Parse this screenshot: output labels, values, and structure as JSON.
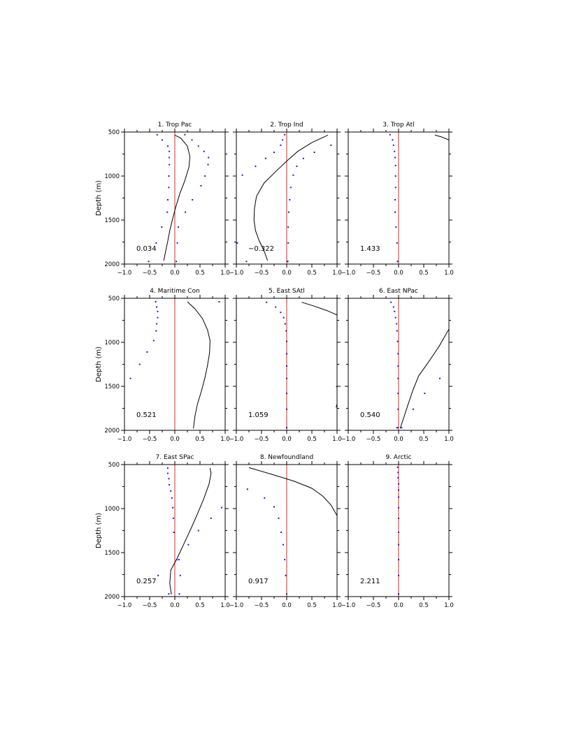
{
  "figure": {
    "ylabel": "Depth (m)",
    "xlim": [
      -1.0,
      1.0
    ],
    "ylim": [
      500,
      2000
    ],
    "x_ticks": [
      "−1.0",
      "−0.5",
      "0.0",
      "0.5",
      "1.0"
    ],
    "y_ticks": [
      "500",
      "1000",
      "1500",
      "2000"
    ],
    "colors": {
      "zero_line": "#e8251f",
      "dots": "#1a1adc",
      "curve": "#000000"
    }
  },
  "chart_data": [
    {
      "type": "line",
      "title": "1. Trop Pac",
      "value_label": "0.034",
      "line": {
        "x": [
          0.0,
          0.12,
          0.25,
          0.3,
          0.28,
          0.2,
          0.1,
          0.02,
          -0.05,
          -0.1,
          -0.14,
          -0.18,
          -0.22
        ],
        "y": [
          535,
          570,
          660,
          780,
          900,
          1050,
          1200,
          1350,
          1500,
          1620,
          1740,
          1850,
          1960
        ]
      },
      "dots": {
        "x": [
          -0.35,
          -0.25,
          -0.14,
          -0.11,
          -0.11,
          -0.11,
          -0.12,
          -0.12,
          -0.14,
          -0.15,
          -0.26,
          -0.37,
          -0.52,
          0.2,
          0.34,
          0.47,
          0.58,
          0.67,
          0.66,
          0.6,
          0.52,
          0.35,
          0.21,
          0.07,
          0.05,
          0.03
        ],
        "y": [
          530,
          590,
          660,
          720,
          790,
          870,
          1000,
          1130,
          1270,
          1410,
          1580,
          1760,
          1970,
          530,
          590,
          660,
          720,
          790,
          870,
          1000,
          1110,
          1270,
          1410,
          1580,
          1760,
          1970
        ]
      }
    },
    {
      "type": "line",
      "title": "2. Trop Ind",
      "value_label": "−0.322",
      "line": {
        "x": [
          0.82,
          0.5,
          0.22,
          0.0,
          -0.22,
          -0.45,
          -0.6,
          -0.64,
          -0.65,
          -0.62,
          -0.55,
          -0.45,
          -0.38
        ],
        "y": [
          535,
          620,
          720,
          830,
          950,
          1080,
          1230,
          1370,
          1500,
          1620,
          1730,
          1850,
          1960
        ]
      },
      "dots": {
        "x": [
          -0.04,
          -0.08,
          -0.12,
          -0.25,
          -0.42,
          -0.62,
          -0.88,
          -0.98,
          -0.8,
          0.88,
          0.55,
          0.33,
          0.2,
          0.13,
          0.08,
          0.06,
          0.04,
          0.03,
          0.03,
          0.02,
          0.02,
          0.02
        ],
        "y": [
          530,
          590,
          650,
          730,
          800,
          890,
          990,
          1760,
          1970,
          650,
          730,
          800,
          890,
          990,
          1130,
          1270,
          1410,
          1580,
          1760,
          1970,
          1970,
          1970
        ]
      }
    },
    {
      "type": "line",
      "title": "3. Trop Atl",
      "value_label": "1.433",
      "line": {
        "x": [
          0.72,
          0.85,
          1.0
        ],
        "y": [
          535,
          555,
          590
        ]
      },
      "dots": {
        "x": [
          -0.17,
          -0.12,
          -0.1,
          -0.08,
          -0.07,
          -0.06,
          -0.06,
          -0.06,
          -0.07,
          -0.07,
          -0.05,
          -0.03,
          -0.02,
          -0.02
        ],
        "y": [
          530,
          590,
          650,
          720,
          790,
          880,
          1000,
          1130,
          1270,
          1410,
          1580,
          1760,
          1970,
          1970
        ]
      }
    },
    {
      "type": "line",
      "title": "4. Maritime Con",
      "value_label": "0.521",
      "line": {
        "x": [
          0.25,
          0.4,
          0.55,
          0.65,
          0.7,
          0.69,
          0.65,
          0.6,
          0.53,
          0.45,
          0.4,
          0.37
        ],
        "y": [
          540,
          620,
          730,
          860,
          980,
          1120,
          1260,
          1400,
          1550,
          1700,
          1840,
          1980
        ]
      },
      "dots": {
        "x": [
          0.88,
          -0.38,
          -0.36,
          -0.34,
          -0.34,
          -0.36,
          -0.37,
          -0.42,
          -0.55,
          -0.7,
          -0.88
        ],
        "y": [
          540,
          540,
          600,
          650,
          720,
          790,
          870,
          980,
          1110,
          1250,
          1410
        ]
      }
    },
    {
      "type": "line",
      "title": "5. East SAtl",
      "value_label": "1.059",
      "line": {
        "x": [
          0.3,
          0.55,
          0.8,
          1.0
        ],
        "y": [
          545,
          590,
          640,
          690
        ]
      },
      "line2": {
        "x": [
          0.98,
          1.0,
          1.0,
          0.98
        ],
        "y": [
          1500,
          1510,
          1700,
          1740
        ]
      },
      "dots": {
        "x": [
          -0.4,
          -0.22,
          -0.12,
          -0.06,
          -0.03,
          -0.01,
          0.0,
          0.0,
          0.0,
          0.0,
          0.0,
          0.0,
          0.0,
          0.0
        ],
        "y": [
          545,
          600,
          660,
          720,
          790,
          870,
          990,
          1130,
          1270,
          1410,
          1580,
          1760,
          1970,
          1970
        ]
      }
    },
    {
      "type": "line",
      "title": "6. East NPac",
      "value_label": "0.540",
      "line": {
        "x": [
          1.0,
          0.8,
          0.6,
          0.4,
          0.28,
          0.18,
          0.1,
          0.03
        ],
        "y": [
          850,
          1050,
          1220,
          1380,
          1550,
          1720,
          1860,
          1980
        ]
      },
      "dots": {
        "x": [
          -0.15,
          -0.1,
          -0.08,
          -0.06,
          -0.04,
          -0.03,
          -0.02,
          -0.01,
          -0.01,
          -0.01,
          -0.01,
          -0.01,
          -0.02,
          -0.03,
          0.82,
          0.52,
          0.29,
          0.06
        ],
        "y": [
          545,
          600,
          650,
          720,
          790,
          870,
          990,
          1130,
          1270,
          1410,
          1580,
          1760,
          1970,
          1970,
          1410,
          1580,
          1760,
          1970
        ]
      }
    },
    {
      "type": "line",
      "title": "7. East SPac",
      "value_label": "0.257",
      "line": {
        "x": [
          0.7,
          0.72,
          0.68,
          0.58,
          0.45,
          0.32,
          0.18,
          0.05,
          -0.08,
          -0.1,
          -0.07
        ],
        "y": [
          540,
          600,
          720,
          880,
          1060,
          1230,
          1400,
          1560,
          1700,
          1850,
          1975
        ]
      },
      "dots": {
        "x": [
          -0.14,
          -0.14,
          -0.12,
          -0.11,
          -0.08,
          -0.06,
          -0.04,
          -0.03,
          -0.02,
          0.93,
          0.72,
          0.47,
          0.27,
          0.08,
          0.04,
          0.11,
          -0.33,
          -0.12,
          0.09
        ],
        "y": [
          540,
          600,
          660,
          730,
          800,
          880,
          990,
          1110,
          1270,
          990,
          1110,
          1250,
          1410,
          1580,
          1580,
          1760,
          1760,
          1970,
          1970
        ]
      }
    },
    {
      "type": "line",
      "title": "8. Newfoundland",
      "value_label": "0.917",
      "line": {
        "x": [
          -0.75,
          -0.3,
          0.15,
          0.5,
          0.72,
          0.88,
          1.0
        ],
        "y": [
          535,
          610,
          690,
          770,
          860,
          960,
          1080
        ]
      },
      "dots": {
        "x": [
          -0.78,
          -0.44,
          -0.25,
          -0.16,
          -0.11,
          -0.07,
          -0.04,
          -0.02,
          0.0
        ],
        "y": [
          780,
          880,
          980,
          1110,
          1270,
          1410,
          1580,
          1760,
          1970
        ]
      }
    },
    {
      "type": "line",
      "title": "9. Arctic",
      "value_label": "2.211",
      "line": {
        "x": [],
        "y": []
      },
      "dots": {
        "x": [
          -0.02,
          -0.01,
          -0.01,
          0.0,
          0.0,
          0.0,
          0.0,
          0.0,
          0.0,
          0.0,
          0.0,
          0.0,
          0.0,
          0.0
        ],
        "y": [
          530,
          590,
          650,
          720,
          790,
          870,
          990,
          1110,
          1270,
          1410,
          1580,
          1760,
          1970,
          1970
        ]
      }
    }
  ]
}
